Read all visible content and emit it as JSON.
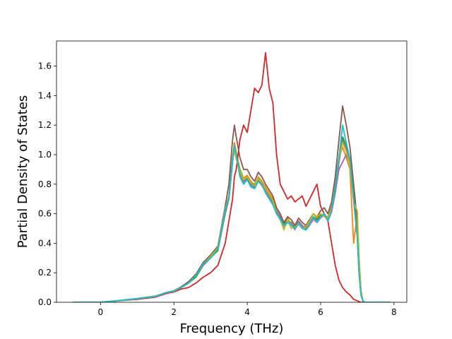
{
  "chart_data": {
    "type": "line",
    "title": "",
    "xlabel": "Frequency (THz)",
    "ylabel": "Partial Density of States",
    "xlim": [
      -1.2,
      8.35
    ],
    "ylim": [
      0.0,
      1.77
    ],
    "xticks": [
      0,
      2,
      4,
      6,
      8
    ],
    "yticks": [
      0.0,
      0.2,
      0.4,
      0.6,
      0.8,
      1.0,
      1.2,
      1.4,
      1.6
    ],
    "grid": false,
    "legend": "none",
    "colors": [
      "#1f77b4",
      "#ff7f0e",
      "#2ca02c",
      "#d62728",
      "#9467bd",
      "#8c564b",
      "#e377c2",
      "#7f7f7f",
      "#bcbd22",
      "#17becf"
    ],
    "x": [
      -0.75,
      0.0,
      0.5,
      1.0,
      1.5,
      1.8,
      2.0,
      2.2,
      2.4,
      2.6,
      2.8,
      3.0,
      3.2,
      3.4,
      3.5,
      3.6,
      3.65,
      3.7,
      3.8,
      3.9,
      4.0,
      4.1,
      4.2,
      4.3,
      4.4,
      4.5,
      4.6,
      4.7,
      4.8,
      4.9,
      5.0,
      5.1,
      5.2,
      5.3,
      5.4,
      5.5,
      5.6,
      5.7,
      5.8,
      5.9,
      6.0,
      6.1,
      6.2,
      6.3,
      6.4,
      6.5,
      6.6,
      6.7,
      6.8,
      6.9,
      7.0,
      7.05,
      7.1,
      7.15,
      7.2,
      7.5,
      7.9
    ],
    "series": [
      {
        "color": "#1f77b4",
        "values": [
          0,
          0,
          0.01,
          0.025,
          0.04,
          0.065,
          0.075,
          0.1,
          0.13,
          0.18,
          0.25,
          0.3,
          0.36,
          0.6,
          0.7,
          0.95,
          1.05,
          1.0,
          0.88,
          0.82,
          0.84,
          0.8,
          0.78,
          0.83,
          0.8,
          0.76,
          0.72,
          0.68,
          0.62,
          0.58,
          0.52,
          0.55,
          0.54,
          0.5,
          0.55,
          0.52,
          0.5,
          0.53,
          0.57,
          0.55,
          0.58,
          0.6,
          0.56,
          0.62,
          0.75,
          0.95,
          1.1,
          1.05,
          0.95,
          0.7,
          0.45,
          0.2,
          0.06,
          0.01,
          0,
          0,
          0
        ]
      },
      {
        "color": "#ff7f0e",
        "values": [
          0,
          0,
          0.012,
          0.025,
          0.04,
          0.066,
          0.076,
          0.1,
          0.135,
          0.18,
          0.26,
          0.31,
          0.37,
          0.62,
          0.72,
          0.98,
          1.08,
          1.02,
          0.9,
          0.84,
          0.86,
          0.82,
          0.79,
          0.85,
          0.82,
          0.78,
          0.74,
          0.7,
          0.6,
          0.56,
          0.5,
          0.57,
          0.52,
          0.52,
          0.53,
          0.5,
          0.52,
          0.55,
          0.6,
          0.57,
          0.6,
          0.58,
          0.58,
          0.65,
          0.8,
          0.98,
          1.05,
          0.98,
          0.9,
          0.4,
          0.6,
          0.3,
          0.08,
          0.01,
          0,
          0,
          0
        ]
      },
      {
        "color": "#2ca02c",
        "values": [
          0,
          0,
          0.011,
          0.024,
          0.041,
          0.064,
          0.077,
          0.1,
          0.13,
          0.17,
          0.25,
          0.3,
          0.35,
          0.6,
          0.72,
          0.96,
          1.06,
          0.98,
          0.9,
          0.83,
          0.85,
          0.81,
          0.8,
          0.84,
          0.81,
          0.77,
          0.73,
          0.69,
          0.61,
          0.57,
          0.53,
          0.56,
          0.53,
          0.51,
          0.54,
          0.51,
          0.51,
          0.54,
          0.58,
          0.56,
          0.59,
          0.59,
          0.57,
          0.63,
          0.78,
          0.96,
          1.12,
          1.06,
          0.96,
          0.72,
          0.46,
          0.22,
          0.07,
          0.01,
          0,
          0,
          0
        ]
      },
      {
        "color": "#d62728",
        "values": [
          0,
          0,
          0.01,
          0.02,
          0.035,
          0.06,
          0.07,
          0.09,
          0.1,
          0.13,
          0.17,
          0.2,
          0.25,
          0.4,
          0.55,
          0.7,
          0.85,
          0.9,
          1.1,
          1.2,
          1.15,
          1.3,
          1.45,
          1.42,
          1.47,
          1.69,
          1.45,
          1.35,
          1.0,
          0.8,
          0.75,
          0.7,
          0.72,
          0.68,
          0.7,
          0.72,
          0.65,
          0.7,
          0.75,
          0.8,
          0.65,
          0.6,
          0.55,
          0.4,
          0.25,
          0.15,
          0.1,
          0.07,
          0.05,
          0.02,
          0.01,
          0.005,
          0.0,
          0,
          0,
          0,
          0
        ]
      },
      {
        "color": "#9467bd",
        "values": [
          0,
          0,
          0.01,
          0.024,
          0.039,
          0.065,
          0.074,
          0.1,
          0.13,
          0.18,
          0.25,
          0.3,
          0.36,
          0.61,
          0.71,
          0.97,
          1.04,
          0.99,
          0.87,
          0.81,
          0.83,
          0.79,
          0.77,
          0.82,
          0.79,
          0.75,
          0.71,
          0.67,
          0.61,
          0.57,
          0.51,
          0.54,
          0.53,
          0.49,
          0.54,
          0.51,
          0.49,
          0.52,
          0.56,
          0.54,
          0.57,
          0.59,
          0.55,
          0.61,
          0.74,
          0.9,
          0.95,
          1.0,
          0.94,
          0.69,
          0.44,
          0.19,
          0.05,
          0.01,
          0,
          0,
          0
        ]
      },
      {
        "color": "#8c564b",
        "values": [
          0,
          0,
          0.011,
          0.026,
          0.042,
          0.067,
          0.078,
          0.105,
          0.14,
          0.19,
          0.27,
          0.32,
          0.38,
          0.65,
          0.8,
          1.1,
          1.2,
          1.12,
          0.98,
          0.9,
          0.9,
          0.85,
          0.82,
          0.88,
          0.85,
          0.8,
          0.76,
          0.72,
          0.64,
          0.6,
          0.54,
          0.58,
          0.56,
          0.52,
          0.57,
          0.54,
          0.52,
          0.56,
          0.6,
          0.58,
          0.62,
          0.64,
          0.6,
          0.68,
          0.85,
          1.1,
          1.33,
          1.2,
          1.05,
          0.8,
          0.55,
          0.25,
          0.08,
          0.01,
          0,
          0,
          0
        ]
      },
      {
        "color": "#e377c2",
        "values": [
          0,
          0,
          0.01,
          0.025,
          0.04,
          0.065,
          0.075,
          0.1,
          0.13,
          0.18,
          0.25,
          0.3,
          0.36,
          0.6,
          0.7,
          0.97,
          1.02,
          0.98,
          0.87,
          0.81,
          0.83,
          0.79,
          0.77,
          0.82,
          0.79,
          0.75,
          0.71,
          0.67,
          0.61,
          0.57,
          0.51,
          0.54,
          0.53,
          0.49,
          0.54,
          0.51,
          0.49,
          0.52,
          0.56,
          0.54,
          0.57,
          0.59,
          0.55,
          0.61,
          0.74,
          0.94,
          1.09,
          1.04,
          0.94,
          0.69,
          0.44,
          0.19,
          0.05,
          0.01,
          0,
          0,
          0
        ]
      },
      {
        "color": "#7f7f7f",
        "values": [
          0,
          0,
          0.01,
          0.025,
          0.04,
          0.065,
          0.075,
          0.1,
          0.13,
          0.18,
          0.25,
          0.3,
          0.36,
          0.6,
          0.7,
          0.95,
          1.04,
          0.99,
          0.88,
          0.82,
          0.84,
          0.8,
          0.78,
          0.83,
          0.8,
          0.76,
          0.72,
          0.68,
          0.62,
          0.58,
          0.52,
          0.55,
          0.54,
          0.5,
          0.55,
          0.52,
          0.5,
          0.53,
          0.57,
          0.55,
          0.58,
          0.6,
          0.56,
          0.62,
          0.75,
          0.95,
          1.1,
          1.05,
          0.95,
          0.7,
          0.45,
          0.2,
          0.06,
          0.01,
          0,
          0,
          0
        ]
      },
      {
        "color": "#bcbd22",
        "values": [
          0,
          0,
          0.011,
          0.025,
          0.041,
          0.066,
          0.076,
          0.1,
          0.13,
          0.18,
          0.26,
          0.31,
          0.37,
          0.63,
          0.72,
          0.96,
          1.03,
          0.97,
          0.89,
          0.83,
          0.85,
          0.81,
          0.79,
          0.84,
          0.81,
          0.77,
          0.73,
          0.69,
          0.6,
          0.56,
          0.49,
          0.56,
          0.5,
          0.51,
          0.53,
          0.5,
          0.51,
          0.55,
          0.6,
          0.58,
          0.6,
          0.58,
          0.57,
          0.64,
          0.79,
          0.97,
          1.08,
          1.02,
          0.93,
          0.68,
          0.62,
          0.3,
          0.08,
          0.01,
          0,
          0,
          0
        ]
      },
      {
        "color": "#17becf",
        "values": [
          0,
          0,
          0.012,
          0.025,
          0.04,
          0.065,
          0.075,
          0.1,
          0.13,
          0.18,
          0.26,
          0.3,
          0.36,
          0.62,
          0.71,
          0.96,
          1.06,
          1.0,
          0.85,
          0.8,
          0.83,
          0.78,
          0.77,
          0.82,
          0.8,
          0.74,
          0.7,
          0.66,
          0.6,
          0.56,
          0.52,
          0.54,
          0.52,
          0.5,
          0.53,
          0.5,
          0.49,
          0.53,
          0.58,
          0.54,
          0.58,
          0.6,
          0.55,
          0.63,
          0.78,
          0.98,
          1.2,
          1.08,
          0.97,
          0.7,
          0.44,
          0.19,
          0.05,
          0.01,
          0,
          0,
          0
        ]
      }
    ]
  }
}
